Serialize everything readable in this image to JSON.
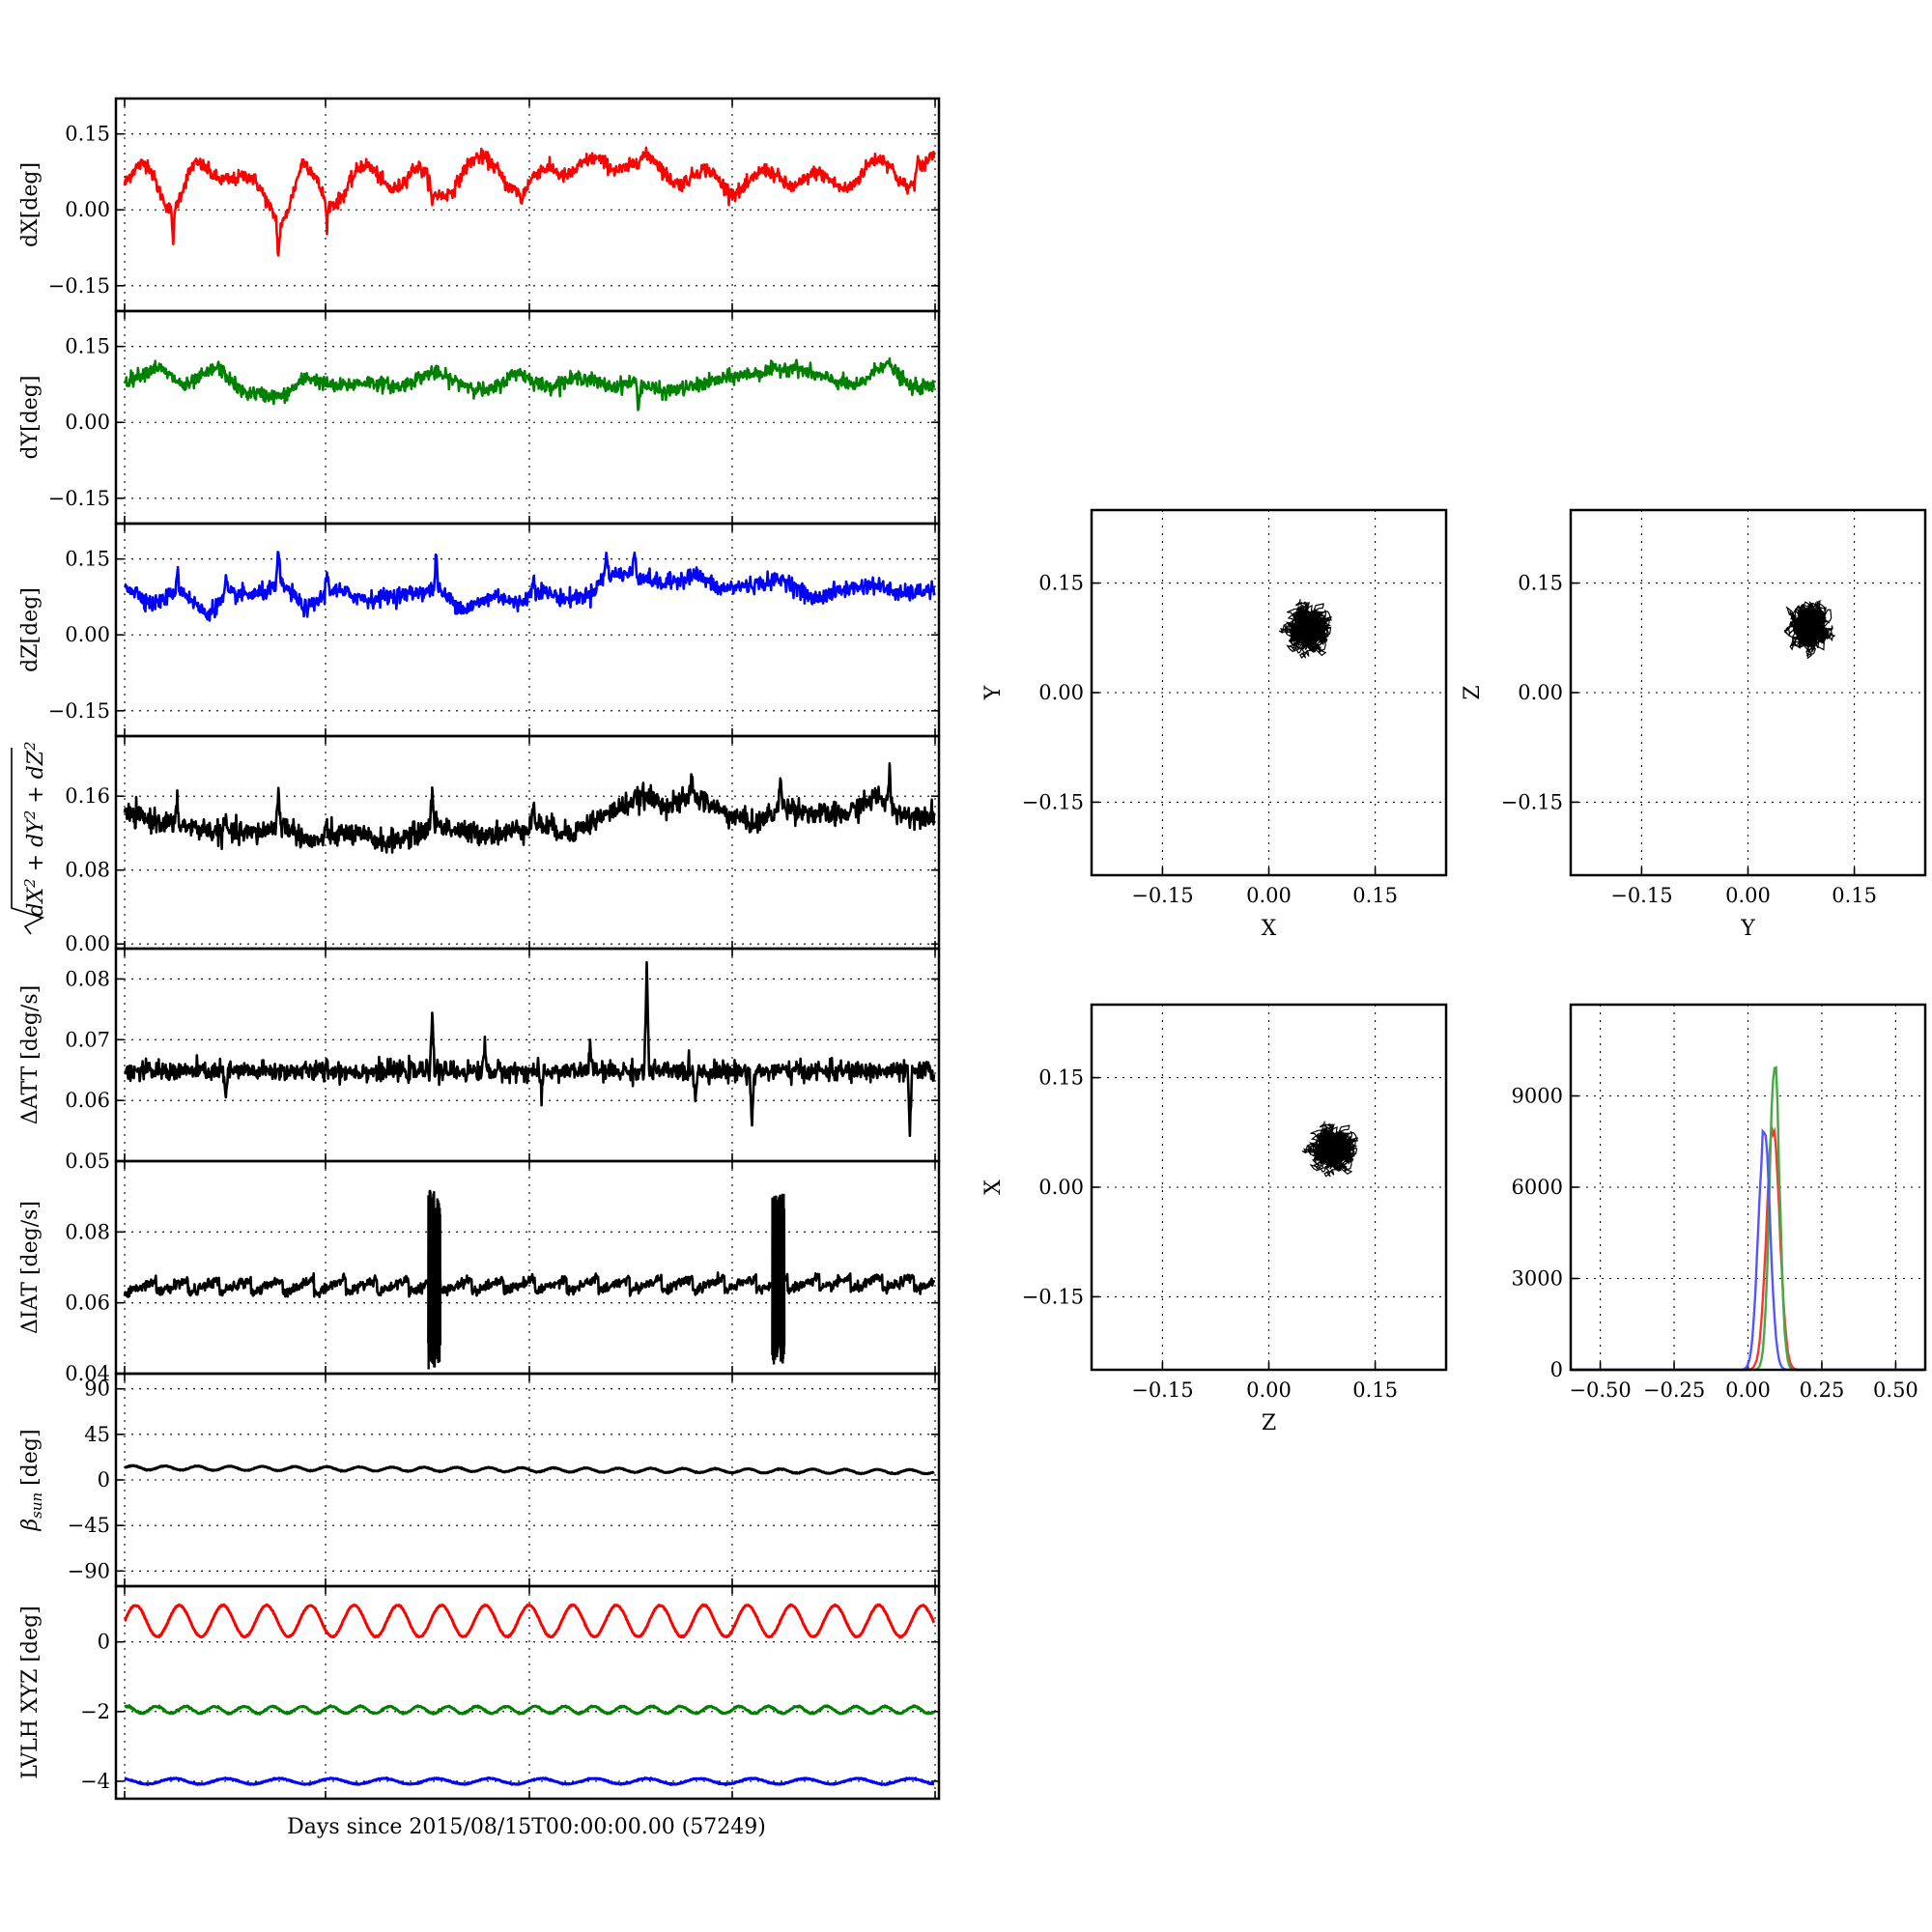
{
  "figure": {
    "shared_xlabel": "Days since 2015/08/15T00:00:00.00 (57249)"
  },
  "chart_data": [
    {
      "id": "dx",
      "type": "line",
      "ylabel": "dX[deg]",
      "ylim": [
        -0.2,
        0.22
      ],
      "yticks": [
        "0.15",
        "0.00",
        "−0.15"
      ],
      "ytick_values": [
        0.15,
        0.0,
        -0.15
      ],
      "xlim": [
        0,
        20
      ],
      "grid": true,
      "series": [
        {
          "color": "#ff0000",
          "base": 0.05,
          "noise": 0.007,
          "wave_amp": 0.02,
          "spikes": [
            [
              1.2,
              -0.05
            ],
            [
              3.8,
              -0.07
            ],
            [
              5.0,
              -0.035
            ],
            [
              7.6,
              -0.04
            ],
            [
              9.8,
              -0.03
            ],
            [
              19.6,
              0.03
            ]
          ],
          "points": [
            [
              0,
              0.04
            ],
            [
              0.6,
              0.07
            ],
            [
              1.2,
              0.0
            ],
            [
              1.7,
              0.06
            ],
            [
              2.5,
              0.07
            ],
            [
              3.2,
              0.03
            ],
            [
              3.9,
              -0.02
            ],
            [
              4.4,
              0.07
            ],
            [
              5.0,
              0.01
            ],
            [
              5.8,
              0.06
            ],
            [
              6.6,
              0.05
            ],
            [
              7.2,
              0.06
            ],
            [
              7.7,
              0.02
            ],
            [
              8.4,
              0.07
            ],
            [
              9.2,
              0.08
            ],
            [
              9.9,
              0.02
            ],
            [
              10.6,
              0.08
            ],
            [
              11.5,
              0.07
            ],
            [
              12.3,
              0.09
            ],
            [
              13.2,
              0.07
            ],
            [
              14.3,
              0.05
            ],
            [
              15.5,
              0.04
            ],
            [
              16.2,
              0.06
            ],
            [
              17.3,
              0.04
            ],
            [
              18.2,
              0.06
            ],
            [
              18.9,
              0.08
            ],
            [
              19.4,
              0.05
            ],
            [
              20,
              0.08
            ]
          ]
        }
      ]
    },
    {
      "id": "dy",
      "type": "line",
      "ylabel": "dY[deg]",
      "ylim": [
        -0.2,
        0.22
      ],
      "yticks": [
        "0.15",
        "0.00",
        "−0.15"
      ],
      "ytick_values": [
        0.15,
        0.0,
        -0.15
      ],
      "xlim": [
        0,
        20
      ],
      "grid": true,
      "series": [
        {
          "color": "#008000",
          "base": 0.09,
          "noise": 0.007,
          "spikes": [
            [
              12.7,
              -0.05
            ]
          ],
          "points": [
            [
              0,
              0.08
            ],
            [
              0.8,
              0.11
            ],
            [
              1.5,
              0.07
            ],
            [
              2.3,
              0.11
            ],
            [
              2.9,
              0.06
            ],
            [
              3.9,
              0.05
            ],
            [
              4.5,
              0.09
            ],
            [
              5.2,
              0.07
            ],
            [
              6.0,
              0.08
            ],
            [
              6.8,
              0.07
            ],
            [
              7.6,
              0.1
            ],
            [
              8.2,
              0.08
            ],
            [
              9.0,
              0.06
            ],
            [
              9.7,
              0.1
            ],
            [
              10.4,
              0.07
            ],
            [
              11.3,
              0.09
            ],
            [
              12.0,
              0.07
            ],
            [
              12.6,
              0.08
            ],
            [
              13.3,
              0.06
            ],
            [
              14.0,
              0.07
            ],
            [
              15.0,
              0.09
            ],
            [
              15.8,
              0.1
            ],
            [
              16.5,
              0.11
            ],
            [
              17.2,
              0.09
            ],
            [
              18.1,
              0.07
            ],
            [
              18.8,
              0.12
            ],
            [
              19.4,
              0.07
            ],
            [
              20,
              0.07
            ]
          ]
        }
      ]
    },
    {
      "id": "dz",
      "type": "line",
      "ylabel": "dZ[deg]",
      "ylim": [
        -0.2,
        0.22
      ],
      "yticks": [
        "0.15",
        "0.00",
        "−0.15"
      ],
      "ytick_values": [
        0.15,
        0.0,
        -0.15
      ],
      "xlim": [
        0,
        20
      ],
      "grid": true,
      "series": [
        {
          "color": "#0000ff",
          "base": 0.08,
          "noise": 0.008,
          "spikes": [
            [
              1.3,
              0.04
            ],
            [
              2.5,
              0.04
            ],
            [
              3.8,
              0.07
            ],
            [
              5.0,
              0.04
            ],
            [
              7.7,
              0.07
            ],
            [
              10.1,
              0.03
            ],
            [
              11.9,
              0.04
            ],
            [
              12.6,
              0.05
            ]
          ],
          "points": [
            [
              0,
              0.1
            ],
            [
              0.7,
              0.06
            ],
            [
              1.4,
              0.09
            ],
            [
              2.0,
              0.04
            ],
            [
              2.6,
              0.08
            ],
            [
              3.3,
              0.08
            ],
            [
              3.9,
              0.1
            ],
            [
              4.5,
              0.05
            ],
            [
              5.1,
              0.09
            ],
            [
              6.0,
              0.07
            ],
            [
              6.9,
              0.08
            ],
            [
              7.7,
              0.09
            ],
            [
              8.4,
              0.05
            ],
            [
              9.2,
              0.08
            ],
            [
              9.7,
              0.06
            ],
            [
              10.2,
              0.09
            ],
            [
              10.9,
              0.07
            ],
            [
              11.5,
              0.08
            ],
            [
              11.9,
              0.12
            ],
            [
              12.6,
              0.12
            ],
            [
              13.3,
              0.1
            ],
            [
              14.1,
              0.12
            ],
            [
              14.7,
              0.09
            ],
            [
              15.6,
              0.1
            ],
            [
              16.3,
              0.11
            ],
            [
              17.0,
              0.07
            ],
            [
              17.8,
              0.09
            ],
            [
              18.5,
              0.1
            ],
            [
              19.2,
              0.08
            ],
            [
              20,
              0.09
            ]
          ]
        }
      ]
    },
    {
      "id": "dtot",
      "type": "line",
      "ylabel_tex": "sqrt(dX² + dY² + dZ²)",
      "ylim": [
        -0.005,
        0.225
      ],
      "yticks": [
        "0.16",
        "0.08",
        "0.00"
      ],
      "ytick_values": [
        0.16,
        0.08,
        0.0
      ],
      "xlim": [
        0,
        20
      ],
      "grid": true,
      "series": [
        {
          "color": "#000000",
          "base": 0.13,
          "noise": 0.006,
          "spikes": [
            [
              1.3,
              0.02
            ],
            [
              2.5,
              0.015
            ],
            [
              3.8,
              0.035
            ],
            [
              5.0,
              0.015
            ],
            [
              7.6,
              0.04
            ],
            [
              10.1,
              0.02
            ],
            [
              14.0,
              0.025
            ],
            [
              16.2,
              0.03
            ],
            [
              18.9,
              0.035
            ]
          ],
          "points": [
            [
              0,
              0.14
            ],
            [
              1.2,
              0.13
            ],
            [
              2.5,
              0.12
            ],
            [
              3.3,
              0.12
            ],
            [
              3.9,
              0.13
            ],
            [
              4.6,
              0.11
            ],
            [
              5.5,
              0.12
            ],
            [
              6.5,
              0.11
            ],
            [
              7.3,
              0.12
            ],
            [
              7.7,
              0.13
            ],
            [
              8.4,
              0.12
            ],
            [
              9.4,
              0.12
            ],
            [
              10.2,
              0.13
            ],
            [
              11.0,
              0.12
            ],
            [
              11.9,
              0.14
            ],
            [
              12.8,
              0.16
            ],
            [
              13.5,
              0.15
            ],
            [
              14.1,
              0.16
            ],
            [
              14.9,
              0.14
            ],
            [
              15.6,
              0.13
            ],
            [
              16.3,
              0.15
            ],
            [
              17.1,
              0.14
            ],
            [
              17.8,
              0.14
            ],
            [
              18.6,
              0.16
            ],
            [
              19.2,
              0.14
            ],
            [
              20,
              0.14
            ]
          ]
        }
      ]
    },
    {
      "id": "datt",
      "type": "line",
      "ylabel": "ΔATT [deg/s]",
      "ylim": [
        0.05,
        0.085
      ],
      "yticks": [
        "0.08",
        "0.07",
        "0.06",
        "0.05"
      ],
      "ytick_values": [
        0.08,
        0.07,
        0.06,
        0.05
      ],
      "xlim": [
        0,
        20
      ],
      "grid": true,
      "series": [
        {
          "color": "#000000",
          "base": 0.0648,
          "noise": 0.0008,
          "spikes": [
            [
              7.6,
              0.0102
            ],
            [
              12.9,
              0.017
            ],
            [
              11.5,
              0.0045
            ],
            [
              8.9,
              0.0045
            ],
            [
              2.5,
              -0.005
            ],
            [
              10.3,
              -0.005
            ],
            [
              14.1,
              -0.004
            ],
            [
              15.5,
              -0.009
            ],
            [
              19.4,
              -0.0098
            ],
            [
              5.0,
              0.0015
            ]
          ],
          "points": [
            [
              0,
              0.0648
            ],
            [
              20,
              0.0648
            ]
          ]
        }
      ]
    },
    {
      "id": "diat",
      "type": "line",
      "ylabel": "ΔIAT [deg/s]",
      "ylim": [
        0.04,
        0.1
      ],
      "yticks": [
        "0.08",
        "0.06",
        "0.04"
      ],
      "ytick_values": [
        0.08,
        0.06,
        0.04
      ],
      "xlim": [
        0,
        20
      ],
      "grid": true,
      "series": [
        {
          "color": "#000000",
          "base": 0.0645,
          "noise": 0.0007,
          "sawtooth_period": 0.78,
          "sawtooth_amp": 0.004,
          "bursts": [
            [
              7.5,
              7.8,
              0.041,
              0.092
            ],
            [
              16.0,
              16.3,
              0.042,
              0.091
            ]
          ],
          "points": [
            [
              0,
              0.0645
            ],
            [
              20,
              0.0655
            ]
          ]
        }
      ]
    },
    {
      "id": "beta",
      "type": "line",
      "ylabel_tex": "β_sun [deg]",
      "ylim": [
        -105,
        105
      ],
      "yticks": [
        "90",
        "45",
        "0",
        "−45",
        "−90"
      ],
      "ytick_values": [
        90,
        45,
        0,
        -45,
        -90
      ],
      "xlim": [
        0,
        20
      ],
      "grid": true,
      "series": [
        {
          "color": "#000000",
          "base": 12,
          "wave_amp": 2,
          "wave_period": 0.8,
          "noise": 0.2,
          "points": [
            [
              0,
              14
            ],
            [
              20,
              10
            ]
          ]
        }
      ]
    },
    {
      "id": "lvlh",
      "type": "line",
      "ylabel": "LVLH XYZ [deg]",
      "ylim": [
        -4.5,
        1.6
      ],
      "yticks": [
        "0",
        "−2",
        "−4"
      ],
      "ytick_values": [
        0,
        -2,
        -4
      ],
      "xlim": [
        0,
        20
      ],
      "grid": true,
      "series": [
        {
          "color": "#ff0000",
          "base": 0.6,
          "wave_amp": 0.45,
          "wave_period": 1.08,
          "noise": 0.01,
          "points": [
            [
              0,
              0.6
            ],
            [
              20,
              0.6
            ]
          ]
        },
        {
          "color": "#008000",
          "base": -1.95,
          "wave_amp": 0.1,
          "wave_period": 0.72,
          "noise": 0.01,
          "points": [
            [
              0,
              -1.95
            ],
            [
              20,
              -1.95
            ]
          ]
        },
        {
          "color": "#0000ff",
          "base": -4.0,
          "wave_amp": 0.08,
          "wave_period": 1.3,
          "noise": 0.008,
          "points": [
            [
              0,
              -4.0
            ],
            [
              20,
              -4.0
            ]
          ]
        }
      ]
    },
    {
      "id": "xy",
      "type": "scatter",
      "xlabel": "X",
      "ylabel": "Y",
      "xlim": [
        -0.25,
        0.25
      ],
      "ylim": [
        -0.25,
        0.25
      ],
      "xticks": [
        "−0.15",
        "0.00",
        "0.15"
      ],
      "yticks": [
        "0.15",
        "0.00",
        "−0.15"
      ],
      "tick_values": [
        -0.15,
        0.0,
        0.15
      ],
      "grid": true,
      "color": "#000000",
      "cloud": {
        "cx": 0.055,
        "cy": 0.085,
        "sx": 0.016,
        "sy": 0.017
      }
    },
    {
      "id": "yz",
      "type": "scatter",
      "xlabel": "Y",
      "ylabel": "Z",
      "xlim": [
        -0.25,
        0.25
      ],
      "ylim": [
        -0.25,
        0.25
      ],
      "xticks": [
        "−0.15",
        "0.00",
        "0.15"
      ],
      "yticks": [
        "0.15",
        "0.00",
        "−0.15"
      ],
      "tick_values": [
        -0.15,
        0.0,
        0.15
      ],
      "grid": true,
      "color": "#000000",
      "cloud": {
        "cx": 0.085,
        "cy": 0.09,
        "sx": 0.015,
        "sy": 0.017
      }
    },
    {
      "id": "zx",
      "type": "scatter",
      "xlabel": "Z",
      "ylabel": "X",
      "xlim": [
        -0.25,
        0.25
      ],
      "ylim": [
        -0.25,
        0.25
      ],
      "xticks": [
        "−0.15",
        "0.00",
        "0.15"
      ],
      "yticks": [
        "0.15",
        "0.00",
        "−0.15"
      ],
      "tick_values": [
        -0.15,
        0.0,
        0.15
      ],
      "grid": true,
      "color": "#000000",
      "cloud": {
        "cx": 0.09,
        "cy": 0.05,
        "sx": 0.017,
        "sy": 0.016
      }
    },
    {
      "id": "hist",
      "type": "line",
      "subtype": "histogram",
      "xlim": [
        -0.6,
        0.6
      ],
      "ylim": [
        0,
        12000
      ],
      "xticks": [
        "−0.50",
        "−0.25",
        "0.00",
        "0.25",
        "0.50"
      ],
      "xtick_values": [
        -0.5,
        -0.25,
        0.0,
        0.25,
        0.5
      ],
      "yticks": [
        "9000",
        "6000",
        "3000",
        "0"
      ],
      "ytick_values": [
        9000,
        6000,
        3000,
        0
      ],
      "grid": true,
      "series": [
        {
          "color": "#ff3333",
          "center": 0.085,
          "sigma": 0.022,
          "peak": 8300
        },
        {
          "color": "#44aa44",
          "center": 0.09,
          "sigma": 0.017,
          "peak": 10400
        },
        {
          "color": "#5555ff",
          "center": 0.055,
          "sigma": 0.02,
          "peak": 8100
        }
      ]
    }
  ]
}
